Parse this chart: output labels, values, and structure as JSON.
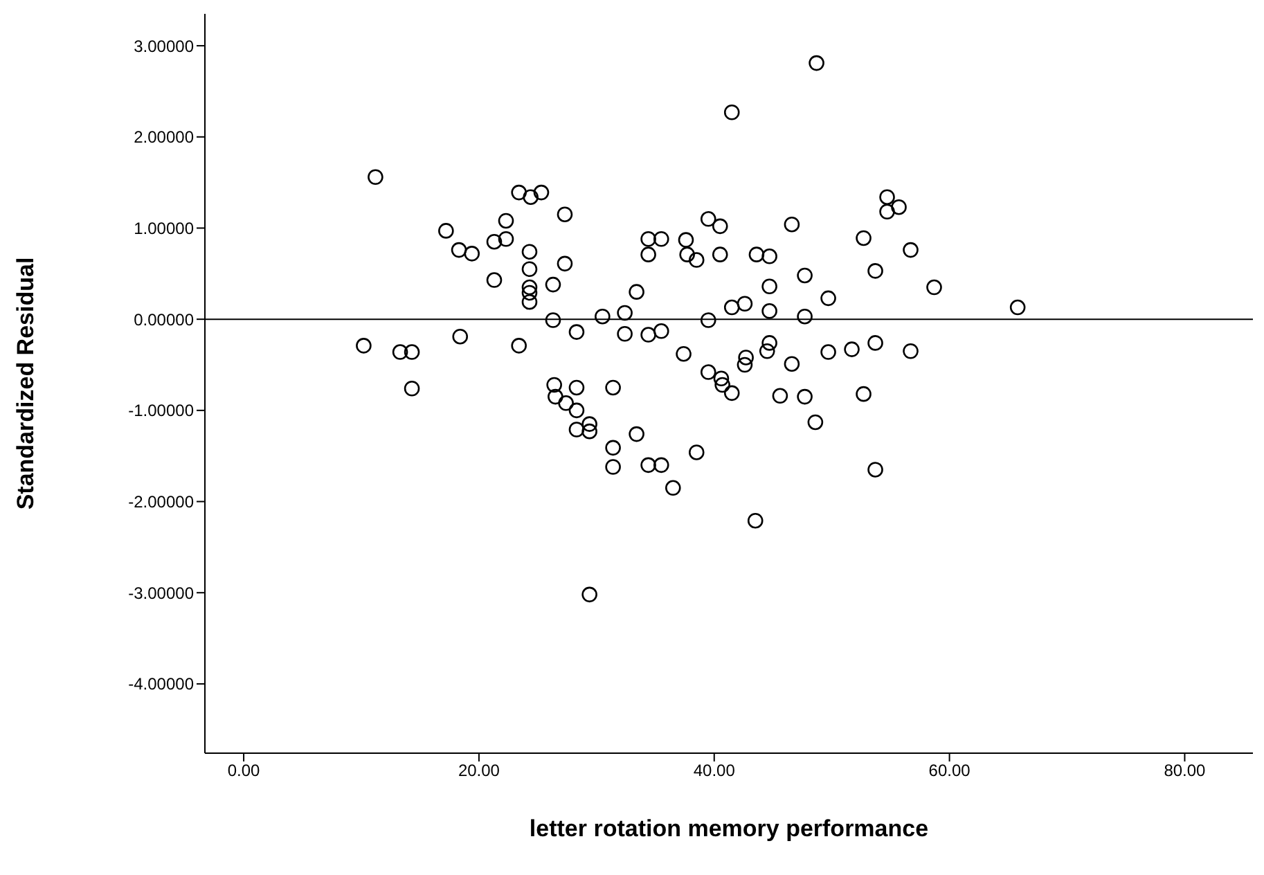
{
  "chart_data": {
    "type": "scatter",
    "xlabel": "letter rotation memory performance",
    "ylabel": "Standardized Residual",
    "xlim": [
      -3.3,
      85.8
    ],
    "ylim": [
      -4.76,
      3.35
    ],
    "xticks": [
      {
        "value": 0,
        "label": "0.00"
      },
      {
        "value": 20,
        "label": "20.00"
      },
      {
        "value": 40,
        "label": "40.00"
      },
      {
        "value": 60,
        "label": "60.00"
      },
      {
        "value": 80,
        "label": "80.00"
      }
    ],
    "yticks": [
      {
        "value": -4,
        "label": "-4.00000"
      },
      {
        "value": -3,
        "label": "-3.00000"
      },
      {
        "value": -2,
        "label": "-2.00000"
      },
      {
        "value": -1,
        "label": "-1.00000"
      },
      {
        "value": 0,
        "label": "0.00000"
      },
      {
        "value": 1,
        "label": "1.00000"
      },
      {
        "value": 2,
        "label": "2.00000"
      },
      {
        "value": 3,
        "label": "3.00000"
      }
    ],
    "marker": "circle",
    "grid": false,
    "ref_lines": [
      {
        "axis": "y",
        "value": 0,
        "color": "#000000"
      }
    ],
    "series": [
      {
        "color": "#000000",
        "x": [
          10.2,
          11.2,
          13.3,
          14.3,
          14.3,
          17.2,
          18.3,
          18.4,
          19.4,
          21.3,
          21.3,
          22.3,
          22.3,
          23.4,
          23.4,
          24.4,
          24.3,
          24.3,
          24.3,
          24.3,
          24.3,
          25.3,
          26.3,
          26.3,
          26.4,
          26.5,
          27.3,
          27.3,
          27.4,
          28.3,
          28.3,
          28.3,
          28.3,
          29.4,
          29.4,
          29.4,
          30.5,
          31.4,
          31.4,
          31.4,
          32.4,
          32.4,
          33.4,
          33.4,
          34.4,
          34.4,
          34.4,
          34.4,
          35.5,
          35.5,
          35.5,
          36.5,
          37.4,
          37.6,
          37.7,
          38.5,
          38.5,
          39.5,
          39.5,
          39.5,
          40.5,
          40.5,
          40.6,
          40.7,
          41.5,
          41.5,
          41.5,
          42.6,
          42.6,
          42.7,
          43.5,
          43.6,
          44.7,
          44.7,
          44.7,
          44.7,
          44.5,
          45.6,
          46.6,
          46.6,
          47.7,
          47.7,
          47.7,
          48.6,
          48.7,
          49.7,
          49.7,
          51.7,
          52.7,
          52.7,
          53.7,
          53.7,
          53.7,
          54.7,
          54.7,
          55.7,
          56.7,
          56.7,
          58.7,
          65.8
        ],
        "values": [
          -0.29,
          1.56,
          -0.36,
          -0.36,
          -0.76,
          0.97,
          0.76,
          -0.19,
          0.72,
          0.43,
          0.85,
          0.88,
          1.08,
          1.39,
          -0.29,
          1.34,
          0.74,
          0.55,
          0.35,
          0.29,
          0.19,
          1.39,
          0.38,
          -0.01,
          -0.72,
          -0.85,
          1.15,
          0.61,
          -0.92,
          -0.14,
          -0.75,
          -1.0,
          -1.21,
          -1.15,
          -1.23,
          -3.02,
          0.03,
          -0.75,
          -1.41,
          -1.62,
          0.07,
          -0.16,
          0.3,
          -1.26,
          0.88,
          0.71,
          -0.17,
          -1.6,
          0.88,
          -0.13,
          -1.6,
          -1.85,
          -0.38,
          0.87,
          0.71,
          0.65,
          -1.46,
          1.1,
          -0.01,
          -0.58,
          1.02,
          0.71,
          -0.65,
          -0.72,
          2.27,
          0.13,
          -0.81,
          0.17,
          -0.5,
          -0.42,
          -2.21,
          0.71,
          0.69,
          0.36,
          0.09,
          -0.26,
          -0.35,
          -0.84,
          1.04,
          -0.49,
          0.48,
          0.03,
          -0.85,
          -1.13,
          2.81,
          0.23,
          -0.36,
          -0.33,
          0.89,
          -0.82,
          0.53,
          -0.26,
          -1.65,
          1.34,
          1.18,
          1.23,
          0.76,
          -0.35,
          0.35,
          0.13
        ]
      }
    ]
  }
}
